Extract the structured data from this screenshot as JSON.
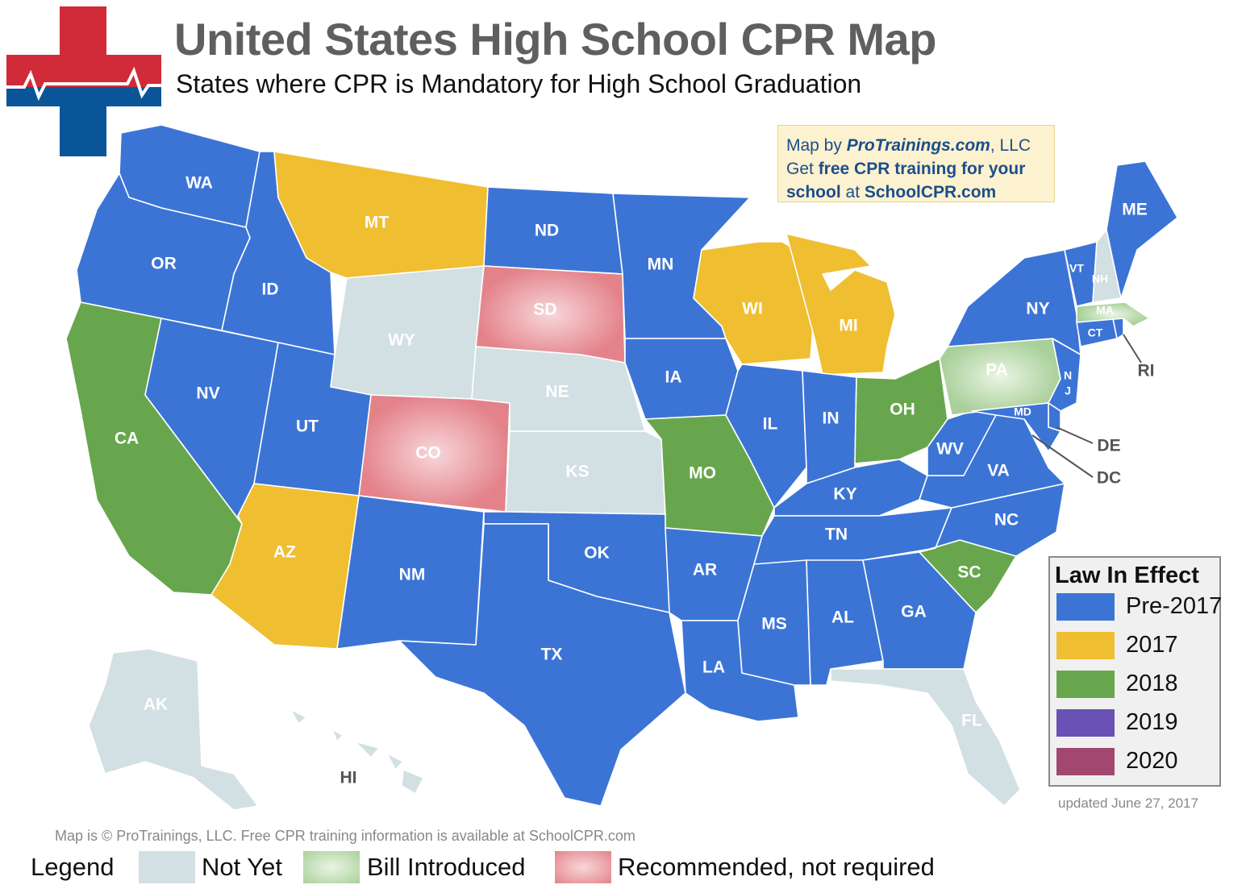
{
  "header": {
    "title": "United States High School CPR Map",
    "subtitle": "States where CPR is Mandatory for High School Graduation"
  },
  "colors": {
    "pre_2017": "#3c74d6",
    "y2017": "#f0be31",
    "y2018": "#68a64d",
    "y2019": "#6a51b6",
    "y2020": "#a2476f",
    "not_yet": "#d2e0e3",
    "bill_introduced": "#a9d09a",
    "recommended": "#e4828a",
    "logo_red": "#d12a38",
    "logo_blue": "#0a5597"
  },
  "credit_box": {
    "line1_prefix": "Map by ",
    "line1_brand": "ProTrainings.com",
    "line1_suffix": ", LLC",
    "line2_prefix": "Get ",
    "line2_bold": "free CPR training for your",
    "line3_bold1": "school",
    "line3_mid": " at ",
    "line3_bold2": "SchoolCPR.com"
  },
  "law_legend": {
    "title": "Law In Effect",
    "items": [
      {
        "label": "Pre-2017",
        "color": "#3c74d6"
      },
      {
        "label": "2017",
        "color": "#f0be31"
      },
      {
        "label": "2018",
        "color": "#68a64d"
      },
      {
        "label": "2019",
        "color": "#6a51b6"
      },
      {
        "label": "2020",
        "color": "#a2476f"
      }
    ]
  },
  "updated": "updated June 27, 2017",
  "copyright": "Map is © ProTrainings, LLC. Free CPR training information is available at SchoolCPR.com",
  "bottom_legend": {
    "label": "Legend",
    "not_yet": "Not Yet",
    "bill_introduced": "Bill Introduced",
    "recommended": "Recommended, not required"
  },
  "map_data": {
    "states": [
      {
        "code": "WA",
        "status": "Pre-2017"
      },
      {
        "code": "OR",
        "status": "Pre-2017"
      },
      {
        "code": "CA",
        "status": "2018"
      },
      {
        "code": "NV",
        "status": "Pre-2017"
      },
      {
        "code": "ID",
        "status": "Pre-2017"
      },
      {
        "code": "MT",
        "status": "2017"
      },
      {
        "code": "WY",
        "status": "Not Yet"
      },
      {
        "code": "UT",
        "status": "Pre-2017"
      },
      {
        "code": "AZ",
        "status": "2017"
      },
      {
        "code": "CO",
        "status": "Recommended, not required"
      },
      {
        "code": "NM",
        "status": "Pre-2017"
      },
      {
        "code": "ND",
        "status": "Pre-2017"
      },
      {
        "code": "SD",
        "status": "Recommended, not required"
      },
      {
        "code": "NE",
        "status": "Not Yet"
      },
      {
        "code": "KS",
        "status": "Not Yet"
      },
      {
        "code": "OK",
        "status": "Pre-2017"
      },
      {
        "code": "TX",
        "status": "Pre-2017"
      },
      {
        "code": "MN",
        "status": "Pre-2017"
      },
      {
        "code": "IA",
        "status": "Pre-2017"
      },
      {
        "code": "MO",
        "status": "2018"
      },
      {
        "code": "AR",
        "status": "Pre-2017"
      },
      {
        "code": "LA",
        "status": "Pre-2017"
      },
      {
        "code": "WI",
        "status": "2017"
      },
      {
        "code": "MI",
        "status": "2017"
      },
      {
        "code": "IL",
        "status": "Pre-2017"
      },
      {
        "code": "IN",
        "status": "Pre-2017"
      },
      {
        "code": "OH",
        "status": "2018"
      },
      {
        "code": "KY",
        "status": "Pre-2017"
      },
      {
        "code": "TN",
        "status": "Pre-2017"
      },
      {
        "code": "MS",
        "status": "Pre-2017"
      },
      {
        "code": "AL",
        "status": "Pre-2017"
      },
      {
        "code": "GA",
        "status": "Pre-2017"
      },
      {
        "code": "FL",
        "status": "Not Yet"
      },
      {
        "code": "SC",
        "status": "2018"
      },
      {
        "code": "NC",
        "status": "Pre-2017"
      },
      {
        "code": "VA",
        "status": "Pre-2017"
      },
      {
        "code": "WV",
        "status": "Pre-2017"
      },
      {
        "code": "PA",
        "status": "Bill Introduced"
      },
      {
        "code": "NY",
        "status": "Pre-2017"
      },
      {
        "code": "NJ",
        "status": "Pre-2017"
      },
      {
        "code": "MD",
        "status": "Pre-2017"
      },
      {
        "code": "DE",
        "status": "Pre-2017"
      },
      {
        "code": "DC",
        "status": "Pre-2017"
      },
      {
        "code": "CT",
        "status": "Pre-2017"
      },
      {
        "code": "RI",
        "status": "Pre-2017"
      },
      {
        "code": "MA",
        "status": "Bill Introduced"
      },
      {
        "code": "VT",
        "status": "Pre-2017"
      },
      {
        "code": "NH",
        "status": "Not Yet"
      },
      {
        "code": "ME",
        "status": "Pre-2017"
      },
      {
        "code": "AK",
        "status": "Not Yet"
      },
      {
        "code": "HI",
        "status": "Not Yet"
      }
    ],
    "labels": {
      "WA": "WA",
      "OR": "OR",
      "CA": "CA",
      "NV": "NV",
      "ID": "ID",
      "MT": "MT",
      "WY": "WY",
      "UT": "UT",
      "AZ": "AZ",
      "CO": "CO",
      "NM": "NM",
      "ND": "ND",
      "SD": "SD",
      "NE": "NE",
      "KS": "KS",
      "OK": "OK",
      "TX": "TX",
      "MN": "MN",
      "IA": "IA",
      "MO": "MO",
      "AR": "AR",
      "LA": "LA",
      "WI": "WI",
      "MI": "MI",
      "IL": "IL",
      "IN": "IN",
      "OH": "OH",
      "KY": "KY",
      "TN": "TN",
      "MS": "MS",
      "AL": "AL",
      "GA": "GA",
      "FL": "FL",
      "SC": "SC",
      "NC": "NC",
      "VA": "VA",
      "WV": "WV",
      "PA": "PA",
      "NY": "NY",
      "NJ_1": "N",
      "NJ_2": "J",
      "MD": "MD",
      "DE": "DE",
      "DC": "DC",
      "CT": "CT",
      "RI": "RI",
      "MA": "MA",
      "VT": "VT",
      "NH": "NH",
      "ME": "ME",
      "AK": "AK",
      "HI": "HI"
    }
  }
}
